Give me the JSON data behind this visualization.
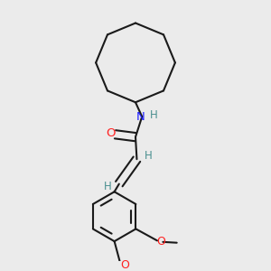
{
  "bg_color": "#ebebeb",
  "bond_color": "#1a1a1a",
  "N_color": "#2020ff",
  "O_color": "#ff2020",
  "H_color": "#4a9090",
  "line_width": 1.5,
  "figsize": [
    3.0,
    3.0
  ],
  "dpi": 100,
  "xlim": [
    0.0,
    1.0
  ],
  "ylim": [
    0.0,
    1.0
  ]
}
